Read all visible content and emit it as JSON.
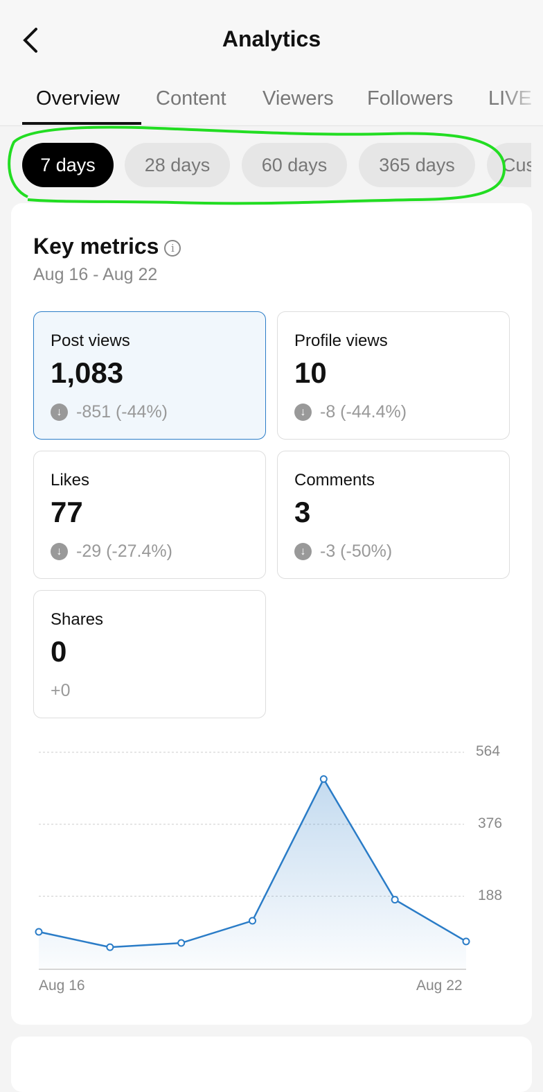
{
  "header": {
    "title": "Analytics",
    "back_icon": "chevron-left-icon"
  },
  "tabs": [
    {
      "label": "Overview",
      "active": true
    },
    {
      "label": "Content"
    },
    {
      "label": "Viewers"
    },
    {
      "label": "Followers"
    },
    {
      "label": "LIVE"
    }
  ],
  "date_filters": [
    {
      "label": "7 days",
      "active": true
    },
    {
      "label": "28 days"
    },
    {
      "label": "60 days"
    },
    {
      "label": "365 days"
    },
    {
      "label": "Cus"
    }
  ],
  "key_metrics": {
    "title": "Key metrics",
    "info_icon": "info-icon",
    "date_range": "Aug 16 - Aug 22",
    "metrics": [
      {
        "label": "Post views",
        "value": "1,083",
        "change": "-851 (-44%)",
        "direction": "down",
        "selected": true
      },
      {
        "label": "Profile views",
        "value": "10",
        "change": "-8 (-44.4%)",
        "direction": "down"
      },
      {
        "label": "Likes",
        "value": "77",
        "change": "-29 (-27.4%)",
        "direction": "down"
      },
      {
        "label": "Comments",
        "value": "3",
        "change": "-3 (-50%)",
        "direction": "down"
      },
      {
        "label": "Shares",
        "value": "0",
        "change": "+0",
        "direction": "none"
      }
    ]
  },
  "chart_data": {
    "type": "area",
    "x": [
      "Aug 16",
      "Aug 17",
      "Aug 18",
      "Aug 19",
      "Aug 20",
      "Aug 21",
      "Aug 22"
    ],
    "x_tick_labels": [
      "Aug 16",
      "Aug 22"
    ],
    "series": [
      {
        "values": [
          95,
          55,
          66,
          124,
          494,
          179,
          70
        ]
      }
    ],
    "y_ticks": [
      "564",
      "376",
      "188"
    ],
    "ylim": [
      0,
      564
    ],
    "grid": true,
    "color": "#2a7cc7"
  },
  "annotation": {
    "color": "#22dd22"
  }
}
